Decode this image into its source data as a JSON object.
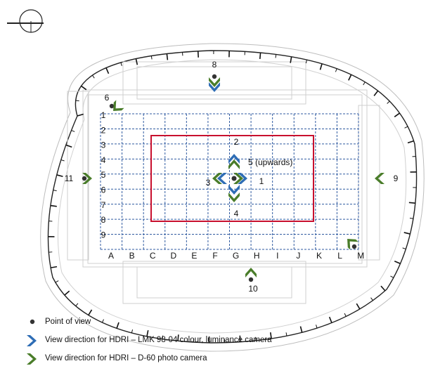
{
  "colors": {
    "grid_dash": "#2f5aa0",
    "red_rect": "#c8102e",
    "blue_chevron": "#2e6db5",
    "green_chevron": "#4a7d2a",
    "dot": "#333333",
    "stadium_line": "#888888"
  },
  "grid": {
    "columns": [
      "A",
      "B",
      "C",
      "D",
      "E",
      "F",
      "G",
      "H",
      "I",
      "J",
      "K",
      "L",
      "M"
    ],
    "rows": [
      "1",
      "2",
      "3",
      "4",
      "5",
      "6",
      "7",
      "8",
      "9"
    ]
  },
  "center_labels": {
    "up": "2",
    "down": "4",
    "left": "3",
    "right": "1",
    "upwards": "5 (upwards)"
  },
  "viewpoints": [
    {
      "id": "6",
      "label": "6",
      "camera": "green"
    },
    {
      "id": "8",
      "label": "8",
      "camera": "both"
    },
    {
      "id": "9",
      "label": "9",
      "camera": "green"
    },
    {
      "id": "10",
      "label": "10",
      "camera": "green"
    },
    {
      "id": "11",
      "label": "11",
      "camera": "green"
    },
    {
      "id": "12",
      "label": "",
      "camera": "green"
    }
  ],
  "legend": {
    "point": "Point of view",
    "blue": "View direction for HDRI – LMK 98-04 colour, luminance camera",
    "green": "View direction for HDRI – D-60 photo camera"
  },
  "north_icon": "compass-north-icon"
}
